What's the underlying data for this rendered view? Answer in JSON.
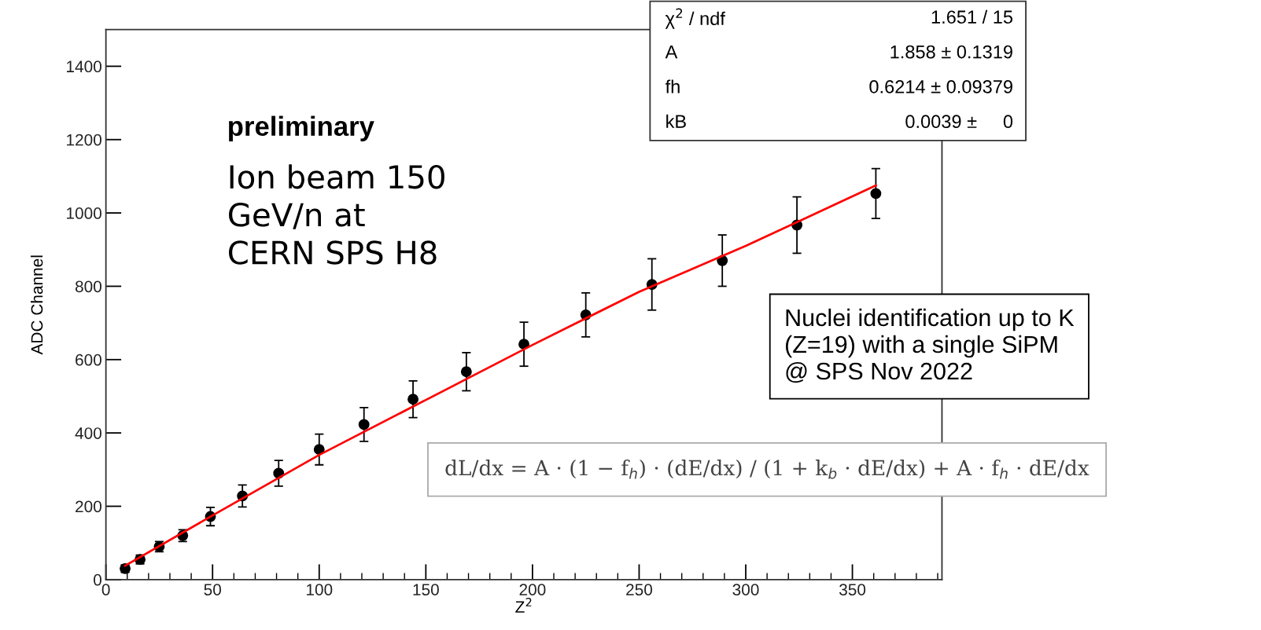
{
  "chart_data": {
    "type": "scatter",
    "xlabel": "Z$^{2}$",
    "ylabel": "ADC Channel",
    "xlim": [
      0,
      392
    ],
    "ylim": [
      0,
      1500
    ],
    "xticks": [
      0,
      50,
      100,
      150,
      200,
      250,
      300,
      350
    ],
    "yticks": [
      0,
      200,
      400,
      600,
      800,
      1000,
      1200,
      1400
    ],
    "grid": false,
    "legend": false,
    "series": [
      {
        "color": "#000000",
        "marker": "circle",
        "x": [
          9,
          16,
          25,
          36,
          49,
          64,
          81,
          100,
          121,
          144,
          169,
          196,
          225,
          256,
          289,
          324,
          361
        ],
        "values": [
          30,
          55,
          90,
          120,
          172,
          228,
          290,
          355,
          423,
          492,
          567,
          642,
          722,
          805,
          870,
          967,
          1053
        ],
        "errors": [
          10,
          12,
          14,
          16,
          25,
          30,
          35,
          42,
          46,
          50,
          52,
          60,
          60,
          70,
          70,
          77,
          68
        ]
      },
      {
        "type": "line",
        "color": "#ff0000",
        "line_style": "solid",
        "x": [
          9,
          50,
          100,
          150,
          200,
          250,
          300,
          361
        ],
        "values": [
          38,
          175,
          340,
          490,
          640,
          785,
          910,
          1075
        ]
      }
    ],
    "annotations": [
      "χ$^{2}$ / ndf",
      "1.651 / 15",
      "A",
      "1.858 ± 0.1319",
      "fh",
      "0.6214 ± 0.09379",
      "kB",
      "0.0039 ±     0",
      "preliminary",
      "Ion beam 150\nGeV/n at\nCERN SPS H8",
      "Nuclei identification up to K\n(Z=19) with a single SiPM\n@ SPS Nov 2022",
      "dL/dx = A · (1 − f$_{h}$) · (dE/dx) / (1 + k$_{b}$ · dE/dx) + A · f$_{h}$ · dE/dx"
    ]
  }
}
